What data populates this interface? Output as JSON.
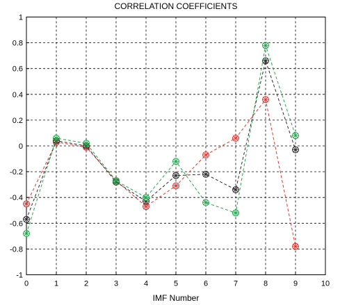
{
  "chart_data": {
    "type": "line",
    "title": "CORRELATION COEFFICIENTS",
    "xlabel": "IMF Number",
    "ylabel": "",
    "xlim": [
      0,
      10
    ],
    "ylim": [
      -1,
      1
    ],
    "grid": true,
    "x_ticks": [
      0,
      1,
      2,
      3,
      4,
      5,
      6,
      7,
      8,
      9,
      10
    ],
    "y_ticks": [
      -1,
      -0.8,
      -0.6,
      -0.4,
      -0.2,
      0,
      0.2,
      0.4,
      0.6,
      0.8,
      1
    ],
    "x_tick_labels": [
      "0",
      "1",
      "2",
      "3",
      "4",
      "5",
      "6",
      "7",
      "8",
      "9",
      "10"
    ],
    "y_tick_labels": [
      "-1",
      "-0.8",
      "-0.6",
      "-0.4",
      "-0.2",
      "0",
      "0.2",
      "0.4",
      "0.6",
      "0.8",
      "1"
    ],
    "x": [
      0,
      1,
      2,
      3,
      4,
      5,
      6,
      7,
      8,
      9
    ],
    "series": [
      {
        "color": "#e8312c",
        "values": [
          -0.45,
          0.03,
          -0.01,
          -0.27,
          -0.47,
          -0.31,
          -0.07,
          0.06,
          0.36,
          -0.78
        ]
      },
      {
        "color": "#2a2a2a",
        "values": [
          -0.57,
          0.04,
          0.0,
          -0.28,
          -0.43,
          -0.23,
          -0.22,
          -0.34,
          0.66,
          -0.03
        ]
      },
      {
        "color": "#1fa84a",
        "values": [
          -0.68,
          0.06,
          0.02,
          -0.27,
          -0.4,
          -0.12,
          -0.44,
          -0.52,
          0.78,
          0.08
        ]
      }
    ]
  }
}
